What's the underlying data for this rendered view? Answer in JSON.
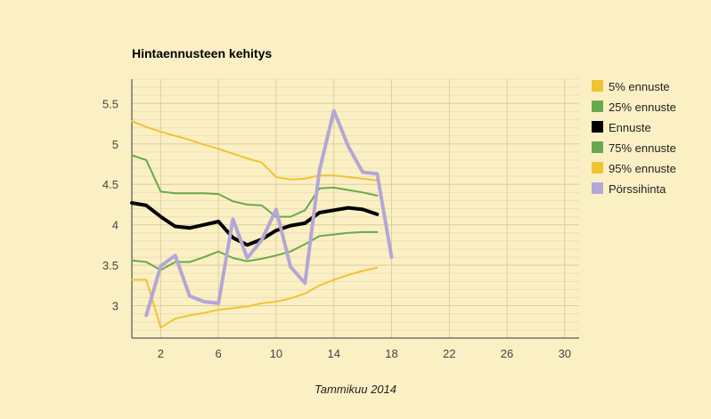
{
  "chart_data": {
    "type": "line",
    "title": "Hintaennusteen kehitys",
    "xlabel": "Tammikuu 2014",
    "ylabel": "",
    "xlim": [
      0,
      31
    ],
    "ylim": [
      2.6,
      5.8
    ],
    "x_ticks": [
      2,
      6,
      10,
      14,
      18,
      22,
      26,
      30
    ],
    "y_ticks": [
      3,
      3.5,
      4,
      4.5,
      5,
      5.5
    ],
    "grid": true,
    "legend_position": "right",
    "series": [
      {
        "name": "5% ennuste",
        "color": "#f1c232",
        "width": 2,
        "x": [
          0,
          1,
          2,
          3,
          4,
          5,
          6,
          7,
          8,
          9,
          10,
          11,
          12,
          13,
          14,
          15,
          16,
          17
        ],
        "values": [
          3.32,
          3.32,
          2.73,
          2.84,
          2.88,
          2.91,
          2.95,
          2.97,
          2.99,
          3.03,
          3.05,
          3.09,
          3.15,
          3.25,
          3.32,
          3.38,
          3.43,
          3.47
        ]
      },
      {
        "name": "25% ennuste",
        "color": "#6aa84f",
        "width": 2,
        "x": [
          0,
          1,
          2,
          3,
          4,
          5,
          6,
          7,
          8,
          9,
          10,
          11,
          12,
          13,
          14,
          15,
          16,
          17
        ],
        "values": [
          3.56,
          3.54,
          3.44,
          3.54,
          3.54,
          3.6,
          3.67,
          3.59,
          3.55,
          3.58,
          3.62,
          3.67,
          3.76,
          3.86,
          3.88,
          3.9,
          3.91,
          3.91
        ]
      },
      {
        "name": "Ennuste",
        "color": "#000000",
        "width": 4,
        "x": [
          0,
          1,
          2,
          3,
          4,
          5,
          6,
          7,
          8,
          9,
          10,
          11,
          12,
          13,
          14,
          15,
          16,
          17
        ],
        "values": [
          4.27,
          4.24,
          4.1,
          3.98,
          3.96,
          4.0,
          4.04,
          3.84,
          3.75,
          3.82,
          3.93,
          3.99,
          4.02,
          4.15,
          4.18,
          4.21,
          4.19,
          4.13
        ]
      },
      {
        "name": "75% ennuste",
        "color": "#6aa84f",
        "width": 2,
        "x": [
          0,
          1,
          2,
          3,
          4,
          5,
          6,
          7,
          8,
          9,
          10,
          11,
          12,
          13,
          14,
          15,
          16,
          17
        ],
        "values": [
          4.86,
          4.8,
          4.41,
          4.39,
          4.39,
          4.39,
          4.38,
          4.29,
          4.25,
          4.24,
          4.1,
          4.1,
          4.18,
          4.45,
          4.46,
          4.43,
          4.4,
          4.36
        ]
      },
      {
        "name": "95% ennuste",
        "color": "#f1c232",
        "width": 2,
        "x": [
          0,
          1,
          2,
          3,
          4,
          5,
          6,
          7,
          8,
          9,
          10,
          11,
          12,
          13,
          14,
          15,
          16,
          17
        ],
        "values": [
          5.28,
          5.21,
          5.15,
          5.1,
          5.05,
          4.99,
          4.94,
          4.88,
          4.82,
          4.77,
          4.59,
          4.56,
          4.57,
          4.61,
          4.61,
          4.59,
          4.57,
          4.55
        ]
      },
      {
        "name": "Pörssihinta",
        "color": "#b4a7d6",
        "width": 4,
        "x": [
          1,
          2,
          3,
          4,
          5,
          6,
          7,
          8,
          9,
          10,
          11,
          12,
          13,
          14,
          15,
          16,
          17,
          18
        ],
        "values": [
          2.88,
          3.49,
          3.62,
          3.12,
          3.05,
          3.03,
          4.07,
          3.59,
          3.81,
          4.19,
          3.48,
          3.28,
          4.67,
          5.41,
          4.97,
          4.65,
          4.63,
          3.6
        ]
      }
    ]
  }
}
